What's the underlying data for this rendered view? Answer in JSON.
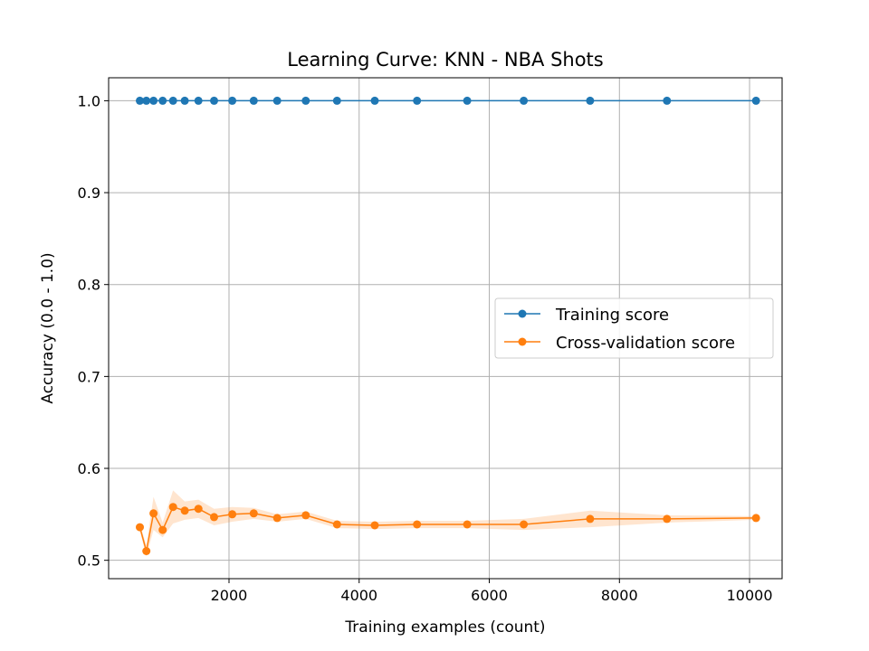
{
  "chart_data": {
    "type": "line",
    "title": "Learning Curve: KNN - NBA Shots",
    "xlabel": "Training examples (count)",
    "ylabel": "Accuracy (0.0 - 1.0)",
    "xlim": [
      150,
      10500
    ],
    "ylim": [
      0.48,
      1.025
    ],
    "xticks": [
      2000,
      4000,
      6000,
      8000,
      10000
    ],
    "yticks": [
      0.5,
      0.6,
      0.7,
      0.8,
      0.9,
      1.0
    ],
    "xtick_labels": [
      "2000",
      "4000",
      "6000",
      "8000",
      "10000"
    ],
    "ytick_labels": [
      "0.5",
      "0.6",
      "0.7",
      "0.8",
      "0.9",
      "1.0"
    ],
    "grid": true,
    "legend_position": "center-right",
    "x": [
      630,
      730,
      840,
      980,
      1140,
      1320,
      1530,
      1770,
      2050,
      2380,
      2740,
      3180,
      3660,
      4240,
      4890,
      5660,
      6530,
      7550,
      8730,
      10100
    ],
    "series": [
      {
        "name": "Training score",
        "color": "#1f77b4",
        "values": [
          1.0,
          1.0,
          1.0,
          1.0,
          1.0,
          1.0,
          1.0,
          1.0,
          1.0,
          1.0,
          1.0,
          1.0,
          1.0,
          1.0,
          1.0,
          1.0,
          1.0,
          1.0,
          1.0,
          1.0
        ],
        "band": [
          0.0,
          0.0,
          0.0,
          0.0,
          0.0,
          0.0,
          0.0,
          0.0,
          0.0,
          0.0,
          0.0,
          0.0,
          0.0,
          0.0,
          0.0,
          0.0,
          0.0,
          0.0,
          0.0,
          0.0
        ]
      },
      {
        "name": "Cross-validation score",
        "color": "#ff7f0e",
        "values": [
          0.536,
          0.51,
          0.551,
          0.533,
          0.558,
          0.554,
          0.556,
          0.547,
          0.55,
          0.551,
          0.546,
          0.549,
          0.539,
          0.538,
          0.539,
          0.539,
          0.539,
          0.545,
          0.545,
          0.546
        ],
        "band": [
          0.004,
          0.006,
          0.018,
          0.008,
          0.018,
          0.01,
          0.01,
          0.009,
          0.008,
          0.006,
          0.004,
          0.004,
          0.004,
          0.004,
          0.004,
          0.004,
          0.006,
          0.009,
          0.004,
          0.002
        ]
      }
    ]
  }
}
